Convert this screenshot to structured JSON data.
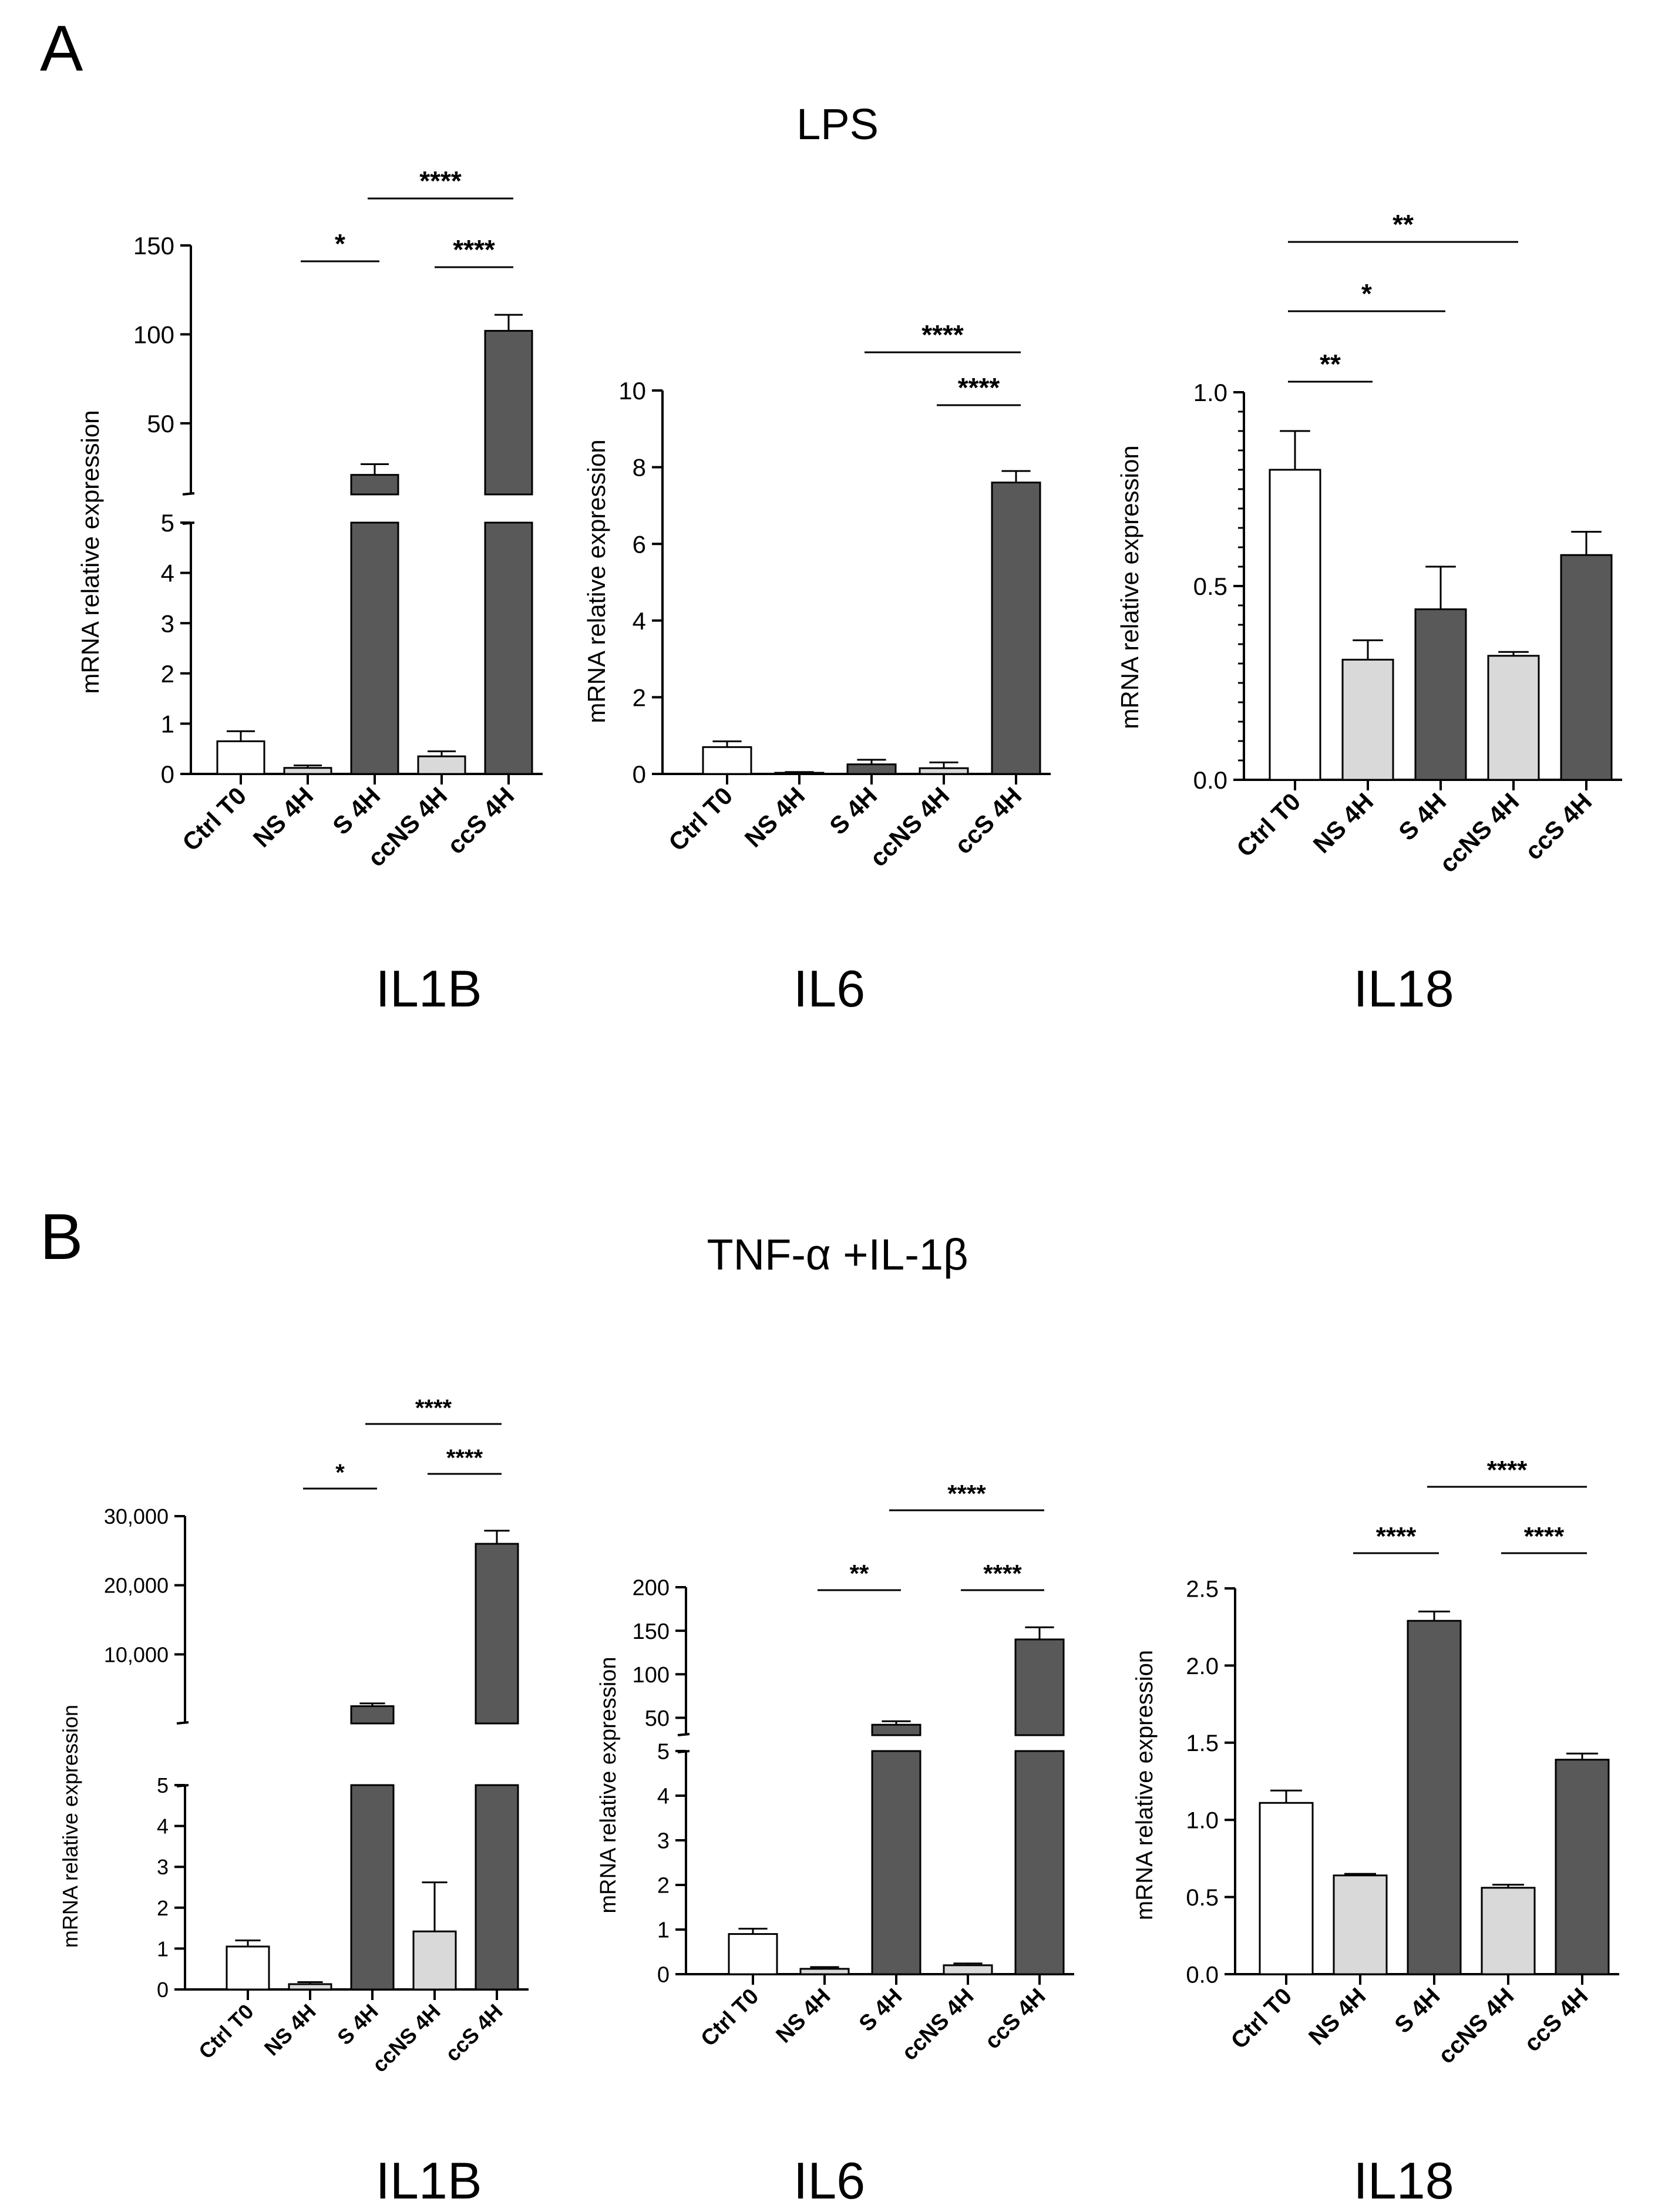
{
  "panels": [
    {
      "letter": "A",
      "title": "LPS"
    },
    {
      "letter": "B",
      "title": "TNF-α +IL-1β"
    }
  ],
  "colors": {
    "white": "#ffffff",
    "light": "#d9d9d9",
    "dark": "#595959",
    "ink": "#000000"
  },
  "chart_data": [
    {
      "type": "bar",
      "panel": "A",
      "title": "IL1B",
      "ylabel": "mRNA relative expression",
      "categories": [
        "Ctrl T0",
        "NS 4H",
        "S 4H",
        "ccNS 4H",
        "ccS 4H"
      ],
      "colors": [
        "white",
        "light",
        "dark",
        "light",
        "dark"
      ],
      "values": [
        0.65,
        0.12,
        21,
        0.35,
        102
      ],
      "errors": [
        0.2,
        0.05,
        6,
        0.1,
        9
      ],
      "broken_axis": true,
      "lower": {
        "ylim": [
          0,
          5
        ],
        "ticks": [
          0,
          1,
          2,
          3,
          4,
          5
        ],
        "labels": [
          "0",
          "1",
          "2",
          "3",
          "4",
          "5"
        ]
      },
      "upper": {
        "ylim": [
          10,
          150
        ],
        "ticks": [
          50,
          100,
          150
        ],
        "labels": [
          "50",
          "100",
          "150"
        ]
      },
      "significance": [
        {
          "from": 1,
          "to": 2,
          "label": "*"
        },
        {
          "from": 3,
          "to": 4,
          "label": "****"
        },
        {
          "from": 2,
          "to": 4,
          "label": "****"
        }
      ]
    },
    {
      "type": "bar",
      "panel": "A",
      "title": "IL6",
      "ylabel": "mRNA relative expression",
      "categories": [
        "Ctrl T0",
        "NS 4H",
        "S 4H",
        "ccNS 4H",
        "ccS 4H"
      ],
      "colors": [
        "white",
        "light",
        "dark",
        "light",
        "dark"
      ],
      "values": [
        0.7,
        0.03,
        0.25,
        0.15,
        7.6
      ],
      "errors": [
        0.15,
        0.02,
        0.12,
        0.15,
        0.3
      ],
      "broken_axis": false,
      "ylim": [
        0,
        10
      ],
      "ticks": [
        0,
        2,
        4,
        6,
        8,
        10
      ],
      "labels": [
        "0",
        "2",
        "4",
        "6",
        "8",
        "10"
      ],
      "significance": [
        {
          "from": 3,
          "to": 4,
          "label": "****"
        },
        {
          "from": 2,
          "to": 4,
          "label": "****"
        }
      ]
    },
    {
      "type": "bar",
      "panel": "A",
      "title": "IL18",
      "ylabel": "mRNA relative expression",
      "categories": [
        "Ctrl T0",
        "NS 4H",
        "S 4H",
        "ccNS 4H",
        "ccS 4H"
      ],
      "colors": [
        "white",
        "light",
        "dark",
        "light",
        "dark"
      ],
      "values": [
        0.8,
        0.31,
        0.44,
        0.32,
        0.58
      ],
      "errors": [
        0.1,
        0.05,
        0.11,
        0.01,
        0.06
      ],
      "broken_axis": false,
      "ylim": [
        0,
        1.0
      ],
      "ticks": [
        0,
        0.5,
        1.0
      ],
      "labels": [
        "0.0",
        "0.5",
        "1.0"
      ],
      "minor": 10,
      "significance": [
        {
          "from": 0,
          "to": 1,
          "label": "**"
        },
        {
          "from": 0,
          "to": 2,
          "label": "*"
        },
        {
          "from": 0,
          "to": 3,
          "label": "**"
        }
      ]
    },
    {
      "type": "bar",
      "panel": "B",
      "title": "IL1B",
      "ylabel": "mRNA relative expression",
      "categories": [
        "Ctrl T0",
        "NS 4H",
        "S 4H",
        "ccNS 4H",
        "ccS 4H"
      ],
      "colors": [
        "white",
        "light",
        "dark",
        "light",
        "dark"
      ],
      "values": [
        1.05,
        0.13,
        2500,
        1.42,
        26000
      ],
      "errors": [
        0.15,
        0.05,
        400,
        1.2,
        1900
      ],
      "broken_axis": true,
      "lower": {
        "ylim": [
          0,
          5
        ],
        "ticks": [
          0,
          1,
          2,
          3,
          4,
          5
        ],
        "labels": [
          "0",
          "1",
          "2",
          "3",
          "4",
          "5"
        ]
      },
      "upper": {
        "ylim": [
          0,
          30000
        ],
        "ticks": [
          10000,
          20000,
          30000
        ],
        "labels": [
          "10,000",
          "20,000",
          "30,000"
        ]
      },
      "significance": [
        {
          "from": 1,
          "to": 2,
          "label": "*"
        },
        {
          "from": 3,
          "to": 4,
          "label": "****"
        },
        {
          "from": 2,
          "to": 4,
          "label": "****"
        }
      ]
    },
    {
      "type": "bar",
      "panel": "B",
      "title": "IL6",
      "ylabel": "mRNA relative expression",
      "categories": [
        "Ctrl T0",
        "NS 4H",
        "S 4H",
        "ccNS 4H",
        "ccS 4H"
      ],
      "colors": [
        "white",
        "light",
        "dark",
        "light",
        "dark"
      ],
      "values": [
        0.9,
        0.12,
        42,
        0.2,
        140
      ],
      "errors": [
        0.12,
        0.04,
        4,
        0.04,
        14
      ],
      "broken_axis": true,
      "lower": {
        "ylim": [
          0,
          5
        ],
        "ticks": [
          0,
          1,
          2,
          3,
          4,
          5
        ],
        "labels": [
          "0",
          "1",
          "2",
          "3",
          "4",
          "5"
        ]
      },
      "upper": {
        "ylim": [
          30,
          200
        ],
        "ticks": [
          50,
          100,
          150,
          200
        ],
        "labels": [
          "50",
          "100",
          "150",
          "200"
        ]
      },
      "significance": [
        {
          "from": 1,
          "to": 2,
          "label": "**"
        },
        {
          "from": 3,
          "to": 4,
          "label": "****"
        },
        {
          "from": 2,
          "to": 4,
          "label": "****"
        }
      ]
    },
    {
      "type": "bar",
      "panel": "B",
      "title": "IL18",
      "ylabel": "mRNA relative expression",
      "categories": [
        "Ctrl T0",
        "NS 4H",
        "S 4H",
        "ccNS 4H",
        "ccS 4H"
      ],
      "colors": [
        "white",
        "light",
        "dark",
        "light",
        "dark"
      ],
      "values": [
        1.11,
        0.64,
        2.29,
        0.56,
        1.39
      ],
      "errors": [
        0.08,
        0.01,
        0.06,
        0.02,
        0.04
      ],
      "broken_axis": false,
      "ylim": [
        0,
        2.5
      ],
      "ticks": [
        0,
        0.5,
        1.0,
        1.5,
        2.0,
        2.5
      ],
      "labels": [
        "0.0",
        "0.5",
        "1.0",
        "1.5",
        "2.0",
        "2.5"
      ],
      "significance": [
        {
          "from": 1,
          "to": 2,
          "label": "****"
        },
        {
          "from": 3,
          "to": 4,
          "label": "****"
        },
        {
          "from": 2,
          "to": 4,
          "label": "****"
        }
      ]
    }
  ]
}
